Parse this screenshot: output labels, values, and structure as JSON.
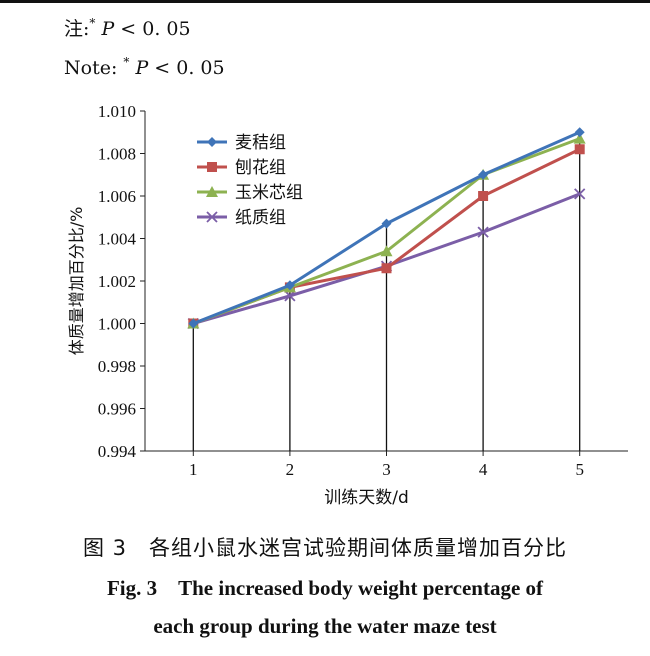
{
  "notes": {
    "cn_prefix": "注:",
    "cn_star": "*",
    "cn_p": "P",
    "cn_rest": " < 0. 05",
    "en_prefix": "Note:",
    "en_star": "*",
    "en_p": "P",
    "en_rest": " < 0. 05"
  },
  "caption": {
    "cn": "图 3　各组小鼠水迷宫试验期间体质量增加百分比",
    "en_line1": "Fig. 3　The increased body weight percentage of",
    "en_line2": "each group during the water maze test"
  },
  "chart_data": {
    "type": "line",
    "x": [
      1,
      2,
      3,
      4,
      5
    ],
    "xlabel": "训练天数/d",
    "ylabel": "体质量增加百分比/%",
    "ylim": [
      0.994,
      1.01
    ],
    "yticks": [
      "0.994",
      "0.996",
      "0.998",
      "1.000",
      "1.002",
      "1.004",
      "1.006",
      "1.008",
      "1.010"
    ],
    "legend_position": "top-left",
    "series": [
      {
        "name": "麦秸组",
        "color": "#3f74b8",
        "marker": "diamond",
        "values": [
          1.0,
          1.0018,
          1.0047,
          1.007,
          1.009
        ]
      },
      {
        "name": "刨花组",
        "color": "#c0504d",
        "marker": "square",
        "values": [
          1.0,
          1.0017,
          1.0026,
          1.006,
          1.0082
        ]
      },
      {
        "name": "玉米芯组",
        "color": "#8db251",
        "marker": "triangle",
        "values": [
          1.0,
          1.0017,
          1.0034,
          1.007,
          1.0087
        ]
      },
      {
        "name": "纸质组",
        "color": "#7b5ea7",
        "marker": "x",
        "values": [
          1.0,
          1.0013,
          1.0027,
          1.0043,
          1.0061
        ]
      }
    ]
  }
}
